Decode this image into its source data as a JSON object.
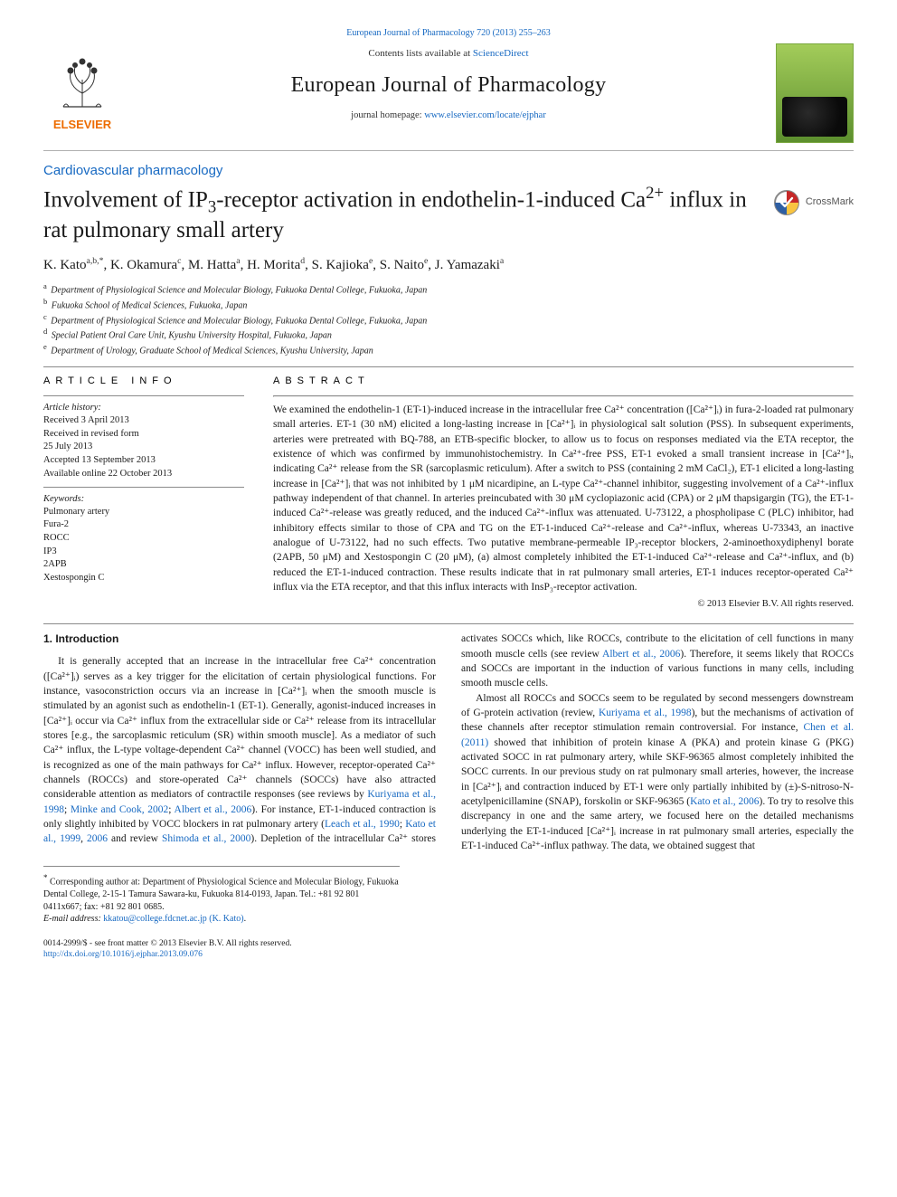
{
  "header": {
    "citation_link": "European Journal of Pharmacology 720 (2013) 255–263",
    "contents_prefix": "Contents lists available at ",
    "contents_link": "ScienceDirect",
    "journal_title": "European Journal of Pharmacology",
    "homepage_prefix": "journal homepage: ",
    "homepage_link": "www.elsevier.com/locate/ejphar"
  },
  "section_label": "Cardiovascular pharmacology",
  "title_parts": {
    "pre": "Involvement of IP",
    "sub1": "3",
    "mid1": "-receptor activation in endothelin-1-induced Ca",
    "sup1": "2+",
    "post": " influx in rat pulmonary small artery"
  },
  "crossmark": "CrossMark",
  "authors_html": "K. Kato<sp>a,b,*</sp>, K. Okamura<sp>c</sp>, M. Hatta<sp>a</sp>, H. Morita<sp>d</sp>, S. Kajioka<sp>e</sp>, S. Naito<sp>e</sp>, J. Yamazaki<sp>a</sp>",
  "affiliations": [
    {
      "label": "a",
      "text": "Department of Physiological Science and Molecular Biology, Fukuoka Dental College, Fukuoka, Japan"
    },
    {
      "label": "b",
      "text": "Fukuoka School of Medical Sciences, Fukuoka, Japan"
    },
    {
      "label": "c",
      "text": "Department of Physiological Science and Molecular Biology, Fukuoka Dental College, Fukuoka, Japan"
    },
    {
      "label": "d",
      "text": "Special Patient Oral Care Unit, Kyushu University Hospital, Fukuoka, Japan"
    },
    {
      "label": "e",
      "text": "Department of Urology, Graduate School of Medical Sciences, Kyushu University, Japan"
    }
  ],
  "article_info": {
    "head": "ARTICLE INFO",
    "history_label": "Article history:",
    "history_lines": [
      "Received 3 April 2013",
      "Received in revised form",
      "25 July 2013",
      "Accepted 13 September 2013",
      "Available online 22 October 2013"
    ],
    "keywords_label": "Keywords:",
    "keywords": [
      "Pulmonary artery",
      "Fura-2",
      "ROCC",
      "IP3",
      "2APB",
      "Xestospongin C"
    ]
  },
  "abstract": {
    "head": "ABSTRACT",
    "text": "We examined the endothelin-1 (ET-1)-induced increase in the intracellular free Ca²⁺ concentration ([Ca²⁺]ᵢ) in fura-2-loaded rat pulmonary small arteries. ET-1 (30 nM) elicited a long-lasting increase in [Ca²⁺]ᵢ in physiological salt solution (PSS). In subsequent experiments, arteries were pretreated with BQ-788, an ETB-specific blocker, to allow us to focus on responses mediated via the ETA receptor, the existence of which was confirmed by immunohistochemistry. In Ca²⁺-free PSS, ET-1 evoked a small transient increase in [Ca²⁺]ᵢ, indicating Ca²⁺ release from the SR (sarcoplasmic reticulum). After a switch to PSS (containing 2 mM CaCl₂), ET-1 elicited a long-lasting increase in [Ca²⁺]ᵢ that was not inhibited by 1 μM nicardipine, an L-type Ca²⁺-channel inhibitor, suggesting involvement of a Ca²⁺-influx pathway independent of that channel. In arteries preincubated with 30 μM cyclopiazonic acid (CPA) or 2 μM thapsigargin (TG), the ET-1-induced Ca²⁺-release was greatly reduced, and the induced Ca²⁺-influx was attenuated. U-73122, a phospholipase C (PLC) inhibitor, had inhibitory effects similar to those of CPA and TG on the ET-1-induced Ca²⁺-release and Ca²⁺-influx, whereas U-73343, an inactive analogue of U-73122, had no such effects. Two putative membrane-permeable IP₃-receptor blockers, 2-aminoethoxydiphenyl borate (2APB, 50 μM) and Xestospongin C (20 μM), (a) almost completely inhibited the ET-1-induced Ca²⁺-release and Ca²⁺-influx, and (b) reduced the ET-1-induced contraction. These results indicate that in rat pulmonary small arteries, ET-1 induces receptor-operated Ca²⁺ influx via the ETA receptor, and that this influx interacts with InsP₃-receptor activation.",
    "copyright": "© 2013 Elsevier B.V. All rights reserved."
  },
  "body": {
    "intro_head": "1.  Introduction",
    "p1": "It is generally accepted that an increase in the intracellular free Ca²⁺ concentration ([Ca²⁺]ᵢ) serves as a key trigger for the elicitation of certain physiological functions. For instance, vasoconstriction occurs via an increase in [Ca²⁺]ᵢ when the smooth muscle is stimulated by an agonist such as endothelin-1 (ET-1). Generally, agonist-induced increases in [Ca²⁺]ᵢ occur via Ca²⁺ influx from the extracellular side or Ca²⁺ release from its intracellular stores [e.g., the sarcoplasmic reticulum (SR) within smooth muscle]. As a mediator of such Ca²⁺ influx, the L-type voltage-dependent Ca²⁺ channel (VOCC) has been well studied, and is recognized as one of the main pathways for Ca²⁺ influx. However, receptor-operated Ca²⁺ channels (ROCCs) and store-operated Ca²⁺ channels (SOCCs) have also attracted considerable attention as mediators of contractile responses (see reviews by ",
    "p1_ref1": "Kuriyama et al., 1998",
    "p1_mid": "; ",
    "p1_ref2": "Minke and Cook, 2002",
    "p1_mid2": "; ",
    "p1_ref3": "Albert et al., 2006",
    "p1_end": "). For instance, ET-1-induced contraction is only slightly inhibited by",
    "p2_pre": "VOCC blockers in rat pulmonary artery (",
    "p2_ref1": "Leach et al., 1990",
    "p2_m1": "; ",
    "p2_ref2": "Kato et al., 1999",
    "p2_m2": ", ",
    "p2_ref3": "2006",
    "p2_m3": " and review ",
    "p2_ref4": "Shimoda et al., 2000",
    "p2_m4": "). Depletion of the intracellular Ca²⁺ stores activates SOCCs which, like ROCCs, contribute to the elicitation of cell functions in many smooth muscle cells (see review ",
    "p2_ref5": "Albert et al., 2006",
    "p2_end": "). Therefore, it seems likely that ROCCs and SOCCs are important in the induction of various functions in many cells, including smooth muscle cells.",
    "p3_pre": "Almost all ROCCs and SOCCs seem to be regulated by second messengers downstream of G-protein activation (review, ",
    "p3_ref1": "Kuriyama et al., 1998",
    "p3_m1": "), but the mechanisms of activation of these channels after receptor stimulation remain controversial. For instance, ",
    "p3_ref2": "Chen et al. (2011)",
    "p3_m2": " showed that inhibition of protein kinase A (PKA) and protein kinase G (PKG) activated SOCC in rat pulmonary artery, while SKF-96365 almost completely inhibited the SOCC currents. In our previous study on rat pulmonary small arteries, however, the increase in [Ca²⁺]ᵢ and contraction induced by ET-1 were only partially inhibited by (±)-S-nitroso-N-acetylpenicillamine (SNAP), forskolin or SKF-96365 (",
    "p3_ref3": "Kato et al., 2006",
    "p3_end": "). To try to resolve this discrepancy in one and the same artery, we focused here on the detailed mechanisms underlying the ET-1-induced [Ca²⁺]ᵢ increase in rat pulmonary small arteries, especially the ET-1-induced Ca²⁺-influx pathway. The data, we obtained suggest that"
  },
  "footnote": {
    "corr": "Corresponding author at: Department of Physiological Science and Molecular Biology, Fukuoka Dental College, 2-15-1 Tamura Sawara-ku, Fukuoka 814-0193, Japan. Tel.: +81 92 801 0411x667; fax: +81 92 801 0685.",
    "email_label": "E-mail address:",
    "email": "kkatou@college.fdcnet.ac.jp (K. Kato)"
  },
  "footer": {
    "left_line1": "0014-2999/$ - see front matter © 2013 Elsevier B.V. All rights reserved.",
    "doi": "http://dx.doi.org/10.1016/j.ejphar.2013.09.076"
  },
  "colors": {
    "link": "#1769c2",
    "rule": "#8a8a8a",
    "elsevier_orange": "#ed6c00",
    "crossmark_red": "#c62828",
    "crossmark_yellow": "#f9c440",
    "crossmark_blue": "#2f5fa3",
    "crossmark_ring": "#888888"
  }
}
